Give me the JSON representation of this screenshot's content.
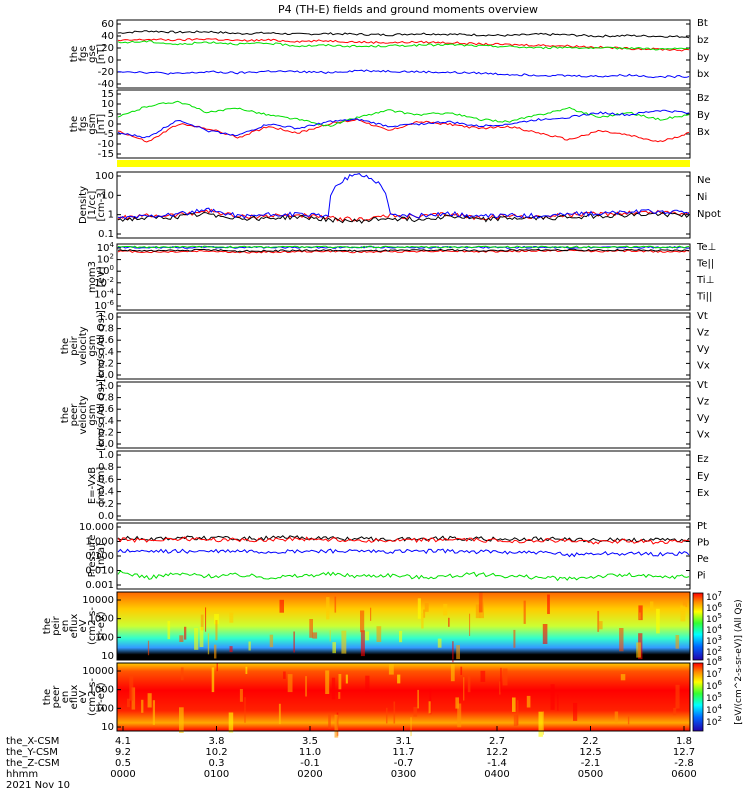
{
  "title": "P4 (TH-E) fields and ground moments overview",
  "date_label": "2021 Nov 10",
  "colors": {
    "black": "#000000",
    "red": "#ff0000",
    "green": "#00e000",
    "blue": "#0000ff",
    "yellow": "#ffff00"
  },
  "chart_data": {
    "type": "line",
    "time_axis": {
      "row_labels": [
        "the_X-CSM",
        "the_Y-CSM",
        "the_Z-CSM",
        "hhmm"
      ],
      "ticks": [
        {
          "x": "4.1",
          "y": "9.2",
          "z": "0.5",
          "hhmm": "0000"
        },
        {
          "x": "3.8",
          "y": "10.2",
          "z": "0.3",
          "hhmm": "0100"
        },
        {
          "x": "3.5",
          "y": "11.0",
          "z": "-0.1",
          "hhmm": "0200"
        },
        {
          "x": "3.1",
          "y": "11.7",
          "z": "-0.7",
          "hhmm": "0300"
        },
        {
          "x": "2.7",
          "y": "12.2",
          "z": "-1.4",
          "hhmm": "0400"
        },
        {
          "x": "2.2",
          "y": "12.5",
          "z": "-2.1",
          "hhmm": "0500"
        },
        {
          "x": "1.8",
          "y": "12.7",
          "z": "-2.8",
          "hhmm": "0600"
        }
      ]
    },
    "panels": [
      {
        "ylabel": [
          "the",
          "fgs",
          "gse",
          "[nT]"
        ],
        "yticks": [
          "60",
          "40",
          "20",
          "0",
          "-20",
          "-40"
        ],
        "ylim": [
          -40,
          65
        ],
        "series": [
          {
            "name": "Bt",
            "color": "#000000",
            "values": [
              45,
              48,
              46,
              47,
              44,
              45,
              43,
              44,
              43,
              42,
              44,
              43,
              42,
              41,
              43,
              42,
              40,
              41,
              40,
              39
            ]
          },
          {
            "name": "bz",
            "color": "#ff0000",
            "values": [
              33,
              35,
              34,
              36,
              33,
              34,
              32,
              33,
              31,
              30,
              31,
              30,
              28,
              27,
              26,
              25,
              23,
              21,
              20,
              18
            ]
          },
          {
            "name": "by",
            "color": "#00e000",
            "values": [
              30,
              32,
              27,
              31,
              28,
              29,
              25,
              26,
              24,
              25,
              26,
              27,
              25,
              24,
              22,
              23,
              21,
              22,
              20,
              21
            ]
          },
          {
            "name": "bx",
            "color": "#0000ff",
            "values": [
              -14,
              -16,
              -18,
              -15,
              -17,
              -14,
              -15,
              -16,
              -13,
              -14,
              -15,
              -16,
              -17,
              -19,
              -20,
              -21,
              -22,
              -20,
              -23,
              -22
            ]
          }
        ]
      },
      {
        "ylabel": [
          "the",
          "fgs",
          "gsm",
          "[nT]"
        ],
        "yticks": [
          "15",
          "10",
          "5",
          "0",
          "-5",
          "-10",
          "-15"
        ],
        "ylim": [
          -15,
          15
        ],
        "series": [
          {
            "name": "Bz",
            "color": "#ff0000",
            "values": [
              -3,
              -8,
              0,
              -2,
              -6,
              -1,
              -4,
              0,
              2,
              -3,
              1,
              0,
              -2,
              -1,
              -4,
              -7,
              -3,
              -5,
              -8,
              -4
            ]
          },
          {
            "name": "By",
            "color": "#00e000",
            "values": [
              3,
              8,
              10,
              5,
              7,
              4,
              2,
              -1,
              3,
              6,
              4,
              5,
              2,
              1,
              4,
              7,
              3,
              5,
              2,
              4
            ]
          },
          {
            "name": "Bx",
            "color": "#0000ff",
            "values": [
              -4,
              -6,
              2,
              -3,
              -5,
              0,
              -2,
              1,
              2,
              -1,
              0,
              1,
              -1,
              0,
              2,
              3,
              5,
              4,
              6,
              5
            ]
          }
        ]
      },
      {
        "ylabel": [
          "Density",
          "[1/cc]",
          "[cm-3]"
        ],
        "yticks": [
          "100",
          "10",
          "1",
          "0.1"
        ],
        "log": true,
        "ylim": [
          0.05,
          200
        ],
        "series": [
          {
            "name": "Ne",
            "color": "#ff0000",
            "values": [
              0.6,
              0.8,
              0.9,
              1.5,
              0.7,
              0.8,
              0.9,
              0.6,
              0.5,
              0.8,
              0.7,
              1.0,
              0.6,
              0.8,
              0.7,
              0.9,
              1.0,
              1.2,
              1.3,
              1.1
            ]
          },
          {
            "name": "Ni",
            "color": "#000000",
            "values": [
              0.5,
              0.6,
              0.7,
              1.0,
              0.6,
              0.6,
              0.7,
              0.5,
              0.4,
              0.6,
              0.5,
              0.8,
              0.5,
              0.6,
              0.6,
              0.7,
              0.8,
              0.9,
              1.0,
              0.9
            ]
          },
          {
            "name": "Npot",
            "color": "#0000ff",
            "values": [
              0.6,
              0.8,
              1.0,
              1.6,
              0.8,
              0.9,
              1.0,
              0.7,
              150,
              0.9,
              0.8,
              1.1,
              0.7,
              0.9,
              0.8,
              1.0,
              1.1,
              1.3,
              1.4,
              1.2
            ]
          }
        ]
      },
      {
        "ylabel": [
          "mom3",
          "[eV]"
        ],
        "yticks": [
          "10",
          "10",
          "10",
          "10",
          "10",
          "10"
        ],
        "ytick_exp": [
          "4",
          "2",
          "0",
          "-2",
          "-4",
          "-6"
        ],
        "log": true,
        "ylim": [
          1e-06,
          10000
        ],
        "series": [
          {
            "name": "Te⊥",
            "color": "#ff0000",
            "values": [
              800,
              600,
              700,
              900,
              500,
              600,
              700,
              800,
              600,
              700,
              800,
              900,
              700,
              800,
              900,
              1000,
              800,
              900,
              700,
              800
            ]
          },
          {
            "name": "Te||",
            "color": "#000000",
            "values": [
              1200,
              900,
              1000,
              1300,
              800,
              900,
              1000,
              1100,
              900,
              1000,
              1100,
              1200,
              1000,
              1100,
              1200,
              1300,
              1100,
              1200,
              1000,
              1100
            ]
          },
          {
            "name": "Ti⊥",
            "color": "#0000ff",
            "values": [
              3000,
              3100,
              3000,
              3200,
              3100,
              3000,
              3100,
              3000,
              3100,
              3200,
              3000,
              3100,
              3000,
              3100,
              3200,
              3000,
              3100,
              3000,
              3100,
              3000
            ]
          },
          {
            "name": "Ti||",
            "color": "#00e000",
            "values": [
              3500,
              3600,
              3500,
              3700,
              3600,
              3500,
              3600,
              3500,
              3600,
              3700,
              3500,
              3600,
              3500,
              3600,
              3700,
              3500,
              3600,
              3500,
              3600,
              3500
            ]
          }
        ]
      },
      {
        "ylabel": [
          "the",
          "peir",
          "velocity",
          "gsm",
          "[km/s (All Qs)]"
        ],
        "yticks": [
          "1.0",
          "0.8",
          "0.6",
          "0.4",
          "0.2",
          "0.0"
        ],
        "ylim": [
          0,
          1
        ],
        "series": [
          {
            "name": "Vt",
            "color": "#000000",
            "values": []
          },
          {
            "name": "Vz",
            "color": "#ff0000",
            "values": []
          },
          {
            "name": "Vy",
            "color": "#00e000",
            "values": []
          },
          {
            "name": "Vx",
            "color": "#0000ff",
            "values": []
          }
        ]
      },
      {
        "ylabel": [
          "the",
          "peer",
          "velocity",
          "gsm",
          "[km/s (All Qs)]"
        ],
        "yticks": [
          "1.0",
          "0.8",
          "0.6",
          "0.4",
          "0.2",
          "0.0"
        ],
        "ylim": [
          0,
          1
        ],
        "series": [
          {
            "name": "Vt",
            "color": "#000000",
            "values": []
          },
          {
            "name": "Vz",
            "color": "#ff0000",
            "values": []
          },
          {
            "name": "Vy",
            "color": "#00e000",
            "values": []
          },
          {
            "name": "Vx",
            "color": "#0000ff",
            "values": []
          }
        ]
      },
      {
        "ylabel": [
          "E=-VxB",
          "[mV/m]"
        ],
        "yticks": [
          "1.0",
          "0.8",
          "0.6",
          "0.4",
          "0.2",
          "0.0"
        ],
        "ylim": [
          0,
          1
        ],
        "series": [
          {
            "name": "Ez",
            "color": "#ff0000",
            "values": []
          },
          {
            "name": "Ey",
            "color": "#00e000",
            "values": []
          },
          {
            "name": "Ex",
            "color": "#0000ff",
            "values": []
          }
        ]
      },
      {
        "ylabel": [
          "Pressure",
          "[nPa]"
        ],
        "yticks": [
          "10.000",
          "1.000",
          "0.100",
          "0.010",
          "0.001"
        ],
        "log": true,
        "ylim": [
          0.001,
          10
        ],
        "series": [
          {
            "name": "Pt",
            "color": "#000000",
            "values": [
              1.2,
              1.1,
              1.3,
              1.2,
              1.1,
              1.2,
              1.3,
              1.2,
              1.1,
              1.0,
              1.1,
              1.2,
              1.1,
              1.0,
              1.1,
              1.0,
              0.9,
              1.0,
              0.9,
              1.0
            ]
          },
          {
            "name": "Pb",
            "color": "#ff0000",
            "values": [
              1.0,
              0.9,
              1.1,
              1.0,
              0.9,
              1.0,
              1.1,
              1.0,
              0.9,
              0.8,
              0.9,
              1.0,
              0.9,
              0.8,
              0.9,
              0.8,
              0.7,
              0.8,
              0.7,
              0.8
            ]
          },
          {
            "name": "Pe",
            "color": "#00e000",
            "values": [
              0.01,
              0.005,
              0.008,
              0.006,
              0.007,
              0.005,
              0.006,
              0.008,
              0.006,
              0.007,
              0.005,
              0.006,
              0.008,
              0.006,
              0.005,
              0.004,
              0.006,
              0.007,
              0.005,
              0.006
            ]
          },
          {
            "name": "Pi",
            "color": "#0000ff",
            "values": [
              0.2,
              0.18,
              0.2,
              0.19,
              0.2,
              0.18,
              0.19,
              0.2,
              0.19,
              0.18,
              0.19,
              0.2,
              0.18,
              0.17,
              0.16,
              0.12,
              0.15,
              0.14,
              0.13,
              0.14
            ]
          }
        ]
      }
    ],
    "spectrograms": [
      {
        "ylabel": [
          "the",
          "peir",
          "en",
          "eflux",
          "eV",
          "(cm2-s-",
          "sr-eV)"
        ],
        "yticks": [
          "10000",
          "1000",
          "100",
          "10"
        ]
      },
      {
        "ylabel": [
          "the",
          "peer",
          "en",
          "eflux",
          "eV",
          "(cm2-s-",
          "sr-eV)"
        ],
        "yticks": [
          "10000",
          "1000",
          "100",
          "10"
        ]
      }
    ],
    "colorbar": {
      "tick_labels": [
        "10",
        "10",
        "10",
        "10",
        "10",
        "10",
        "10",
        "10",
        "10",
        "10",
        "10",
        "10"
      ],
      "tick_exp": [
        "7",
        "6",
        "5",
        "4",
        "3",
        "2",
        "8",
        "7",
        "6",
        "5",
        "4",
        "2"
      ],
      "label": "[eV/(cm^2-s-sr-eV)] (All Qs)"
    }
  }
}
